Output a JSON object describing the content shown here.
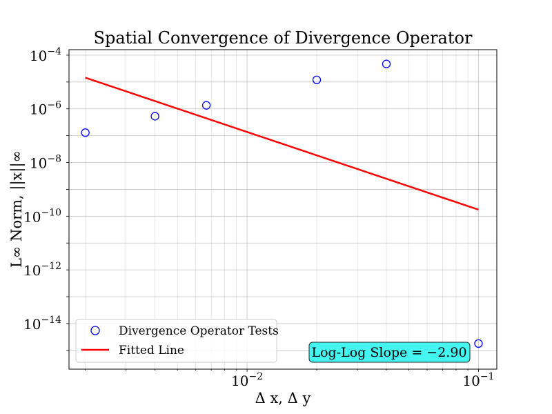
{
  "chart_data": {
    "type": "scatter",
    "title": "Spatial Convergence of Divergence Operator",
    "xlabel": "Δ x, Δ y",
    "ylabel": "L∞ Norm, ||x||∞",
    "x_scale": "log",
    "y_scale": "log",
    "xlim": [
      0.0017,
      0.12
    ],
    "ylim": [
      2e-16,
      0.00016
    ],
    "x_ticks": [
      {
        "value": 0.01,
        "base": "10",
        "exp": "−2"
      },
      {
        "value": 0.1,
        "base": "10",
        "exp": "−1"
      }
    ],
    "y_ticks": [
      {
        "value": 0.0001,
        "base": "10",
        "exp": "−4"
      },
      {
        "value": 1e-06,
        "base": "10",
        "exp": "−6"
      },
      {
        "value": 1e-08,
        "base": "10",
        "exp": "−8"
      },
      {
        "value": 1e-10,
        "base": "10",
        "exp": "−10"
      },
      {
        "value": 1e-12,
        "base": "10",
        "exp": "−12"
      },
      {
        "value": 1e-14,
        "base": "10",
        "exp": "−14"
      }
    ],
    "grid": true,
    "legend_position": "lower-left",
    "series": [
      {
        "name": "Divergence Operator Tests",
        "kind": "scatter",
        "marker": "open-circle",
        "color": "#0000ff",
        "x": [
          0.002,
          0.004,
          0.00667,
          0.02,
          0.04,
          0.1
        ],
        "y": [
          1.3e-07,
          5.3e-07,
          1.35e-06,
          1.2e-05,
          4.7e-05,
          1.8e-15
        ]
      },
      {
        "name": "Fitted Line",
        "kind": "line",
        "color": "#ff0000",
        "x": [
          0.002,
          0.1
        ],
        "y": [
          1.45e-05,
          1.75e-10
        ]
      }
    ],
    "annotation": {
      "text": "Log-Log Slope = −2.90",
      "background": "#44f5f0"
    }
  }
}
